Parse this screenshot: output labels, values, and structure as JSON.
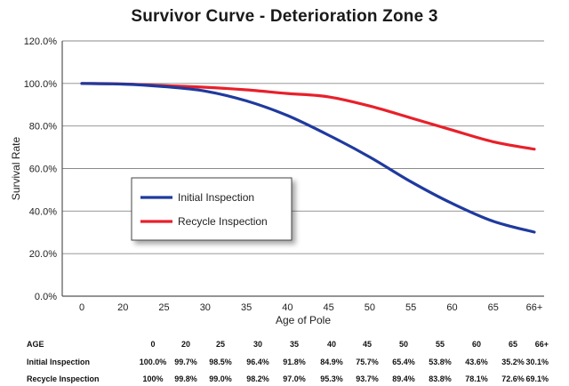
{
  "chart_data": {
    "type": "line",
    "title": "Survivor Curve - Deterioration Zone 3",
    "xlabel": "Age of Pole",
    "ylabel": "Survival Rate",
    "categories": [
      "0",
      "20",
      "25",
      "30",
      "35",
      "40",
      "45",
      "50",
      "55",
      "60",
      "65",
      "66+"
    ],
    "ylim": [
      0,
      120
    ],
    "yticks": [
      "0.0%",
      "20.0%",
      "40.0%",
      "60.0%",
      "80.0%",
      "100.0%",
      "120.0%"
    ],
    "grid": true,
    "legend_position": "center-left",
    "series": [
      {
        "name": "Initial Inspection",
        "color": "#1f3a9e",
        "values": [
          100.0,
          99.7,
          98.5,
          96.4,
          91.8,
          84.9,
          75.7,
          65.4,
          53.8,
          43.6,
          35.2,
          30.1
        ]
      },
      {
        "name": "Recycle Inspection",
        "color": "#e8202a",
        "values": [
          100.0,
          99.8,
          99.0,
          98.2,
          97.0,
          95.3,
          93.7,
          89.4,
          83.8,
          78.1,
          72.6,
          69.1
        ]
      }
    ]
  },
  "table": {
    "header_label": "AGE",
    "header_values": [
      "0",
      "20",
      "25",
      "30",
      "35",
      "40",
      "45",
      "50",
      "55",
      "60",
      "65",
      "66+"
    ],
    "rows": [
      {
        "label": "Initial Inspection",
        "values": [
          "100.0%",
          "99.7%",
          "98.5%",
          "96.4%",
          "91.8%",
          "84.9%",
          "75.7%",
          "65.4%",
          "53.8%",
          "43.6%",
          "35.2%",
          "30.1%"
        ]
      },
      {
        "label": "Recycle Inspection",
        "values": [
          "100%",
          "99.8%",
          "99.0%",
          "98.2%",
          "97.0%",
          "95.3%",
          "93.7%",
          "89.4%",
          "83.8%",
          "78.1%",
          "72.6%",
          "69.1%"
        ]
      }
    ]
  }
}
